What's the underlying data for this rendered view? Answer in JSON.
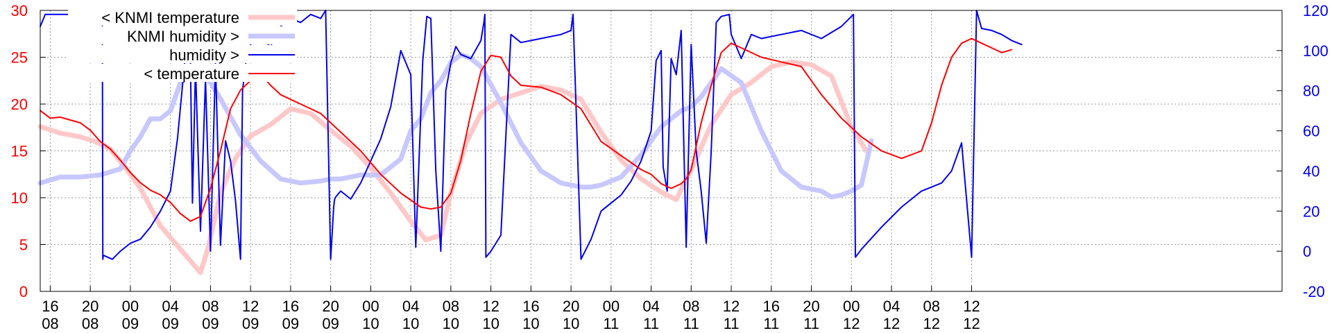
{
  "chart_data": {
    "type": "line",
    "title": "",
    "legend_position": "top-left",
    "grid": true,
    "colors": {
      "temperature": "#ff0000",
      "humidity": "#0000ee",
      "knmi_temperature": "#ffc8c8",
      "knmi_humidity": "#c8c8ff",
      "left_axis": "#ff0000",
      "right_axis": "#0000ee"
    },
    "y_left": {
      "ticks": [
        "0",
        "5",
        "10",
        "15",
        "20",
        "25",
        "30"
      ],
      "range": [
        0,
        30
      ]
    },
    "y_right": {
      "ticks": [
        "-20",
        "0",
        "20",
        "40",
        "60",
        "80",
        "100",
        "120"
      ],
      "range": [
        -20,
        120
      ]
    },
    "x_range_hours": [
      0,
      124
    ],
    "x_ticks": [
      {
        "h": 1,
        "top": "16",
        "bottom": "08"
      },
      {
        "h": 5,
        "top": "20",
        "bottom": "08"
      },
      {
        "h": 9,
        "top": "00",
        "bottom": "09"
      },
      {
        "h": 13,
        "top": "04",
        "bottom": "09"
      },
      {
        "h": 17,
        "top": "08",
        "bottom": "09"
      },
      {
        "h": 21,
        "top": "12",
        "bottom": "09"
      },
      {
        "h": 25,
        "top": "16",
        "bottom": "09"
      },
      {
        "h": 29,
        "top": "20",
        "bottom": "09"
      },
      {
        "h": 33,
        "top": "00",
        "bottom": "10"
      },
      {
        "h": 37,
        "top": "04",
        "bottom": "10"
      },
      {
        "h": 41,
        "top": "08",
        "bottom": "10"
      },
      {
        "h": 45,
        "top": "12",
        "bottom": "10"
      },
      {
        "h": 49,
        "top": "16",
        "bottom": "10"
      },
      {
        "h": 53,
        "top": "20",
        "bottom": "10"
      },
      {
        "h": 57,
        "top": "00",
        "bottom": "11"
      },
      {
        "h": 61,
        "top": "04",
        "bottom": "11"
      },
      {
        "h": 65,
        "top": "08",
        "bottom": "11"
      },
      {
        "h": 69,
        "top": "12",
        "bottom": "11"
      },
      {
        "h": 73,
        "top": "16",
        "bottom": "11"
      },
      {
        "h": 77,
        "top": "20",
        "bottom": "11"
      },
      {
        "h": 81,
        "top": "00",
        "bottom": "12"
      },
      {
        "h": 85,
        "top": "04",
        "bottom": "12"
      },
      {
        "h": 89,
        "top": "08",
        "bottom": "12"
      },
      {
        "h": 93,
        "top": "12",
        "bottom": "12"
      }
    ],
    "series": [
      {
        "name": "< KNMI temperature",
        "key": "knmi_temperature",
        "axis": "left",
        "width": 7,
        "x": [
          0,
          2,
          4,
          5.5,
          7,
          8.5,
          10,
          12,
          14,
          16,
          16.8,
          18,
          19.5,
          21,
          23,
          25,
          27,
          29,
          31,
          33,
          35,
          37,
          38.5,
          40,
          41,
          42.5,
          44,
          46,
          48,
          50,
          52,
          54,
          56,
          58,
          60,
          62,
          63.5,
          65,
          67,
          69,
          71,
          73,
          75,
          77,
          79,
          81,
          82.5
        ],
        "y": [
          17.6,
          16.9,
          16.5,
          16.0,
          15.2,
          13.2,
          11.0,
          7.0,
          4.5,
          2.0,
          4.8,
          10.5,
          14.2,
          16.6,
          17.8,
          19.5,
          19.0,
          17.2,
          15.5,
          13.2,
          10.5,
          7.5,
          5.5,
          6.0,
          10.5,
          15.8,
          19.0,
          20.5,
          21.2,
          21.9,
          21.5,
          20.5,
          17.0,
          14.0,
          12.0,
          10.6,
          9.8,
          13.0,
          17.8,
          21.0,
          22.3,
          24.0,
          24.5,
          24.2,
          23.0,
          17.5,
          15.0
        ]
      },
      {
        "name": "KNMI humidity >",
        "key": "knmi_humidity",
        "axis": "right",
        "width": 7,
        "x": [
          0,
          2,
          4,
          6,
          8,
          9,
          10,
          11,
          12,
          13,
          14,
          15,
          16,
          17,
          18,
          20,
          22,
          24,
          26,
          28,
          29,
          30,
          32,
          34,
          36,
          37,
          38,
          39,
          40,
          41,
          42,
          43,
          44,
          46,
          48,
          50,
          52,
          54,
          55,
          56,
          58,
          60,
          61,
          62,
          63,
          64,
          65,
          66,
          67,
          68,
          70,
          72,
          74,
          76,
          78,
          79,
          80,
          81,
          82,
          83
        ],
        "y": [
          34,
          37,
          37,
          38,
          41,
          50,
          57,
          66,
          66,
          70,
          84,
          88,
          90,
          84,
          76,
          58,
          45,
          36,
          34,
          35,
          36,
          36,
          38,
          38,
          46,
          60,
          66,
          79,
          85,
          94,
          98,
          96,
          92,
          74,
          54,
          40,
          34,
          32,
          32,
          33,
          37,
          48,
          55,
          62,
          66,
          70,
          72,
          77,
          84,
          91,
          84,
          60,
          40,
          32,
          30,
          27,
          28,
          30,
          33,
          55
        ]
      },
      {
        "name": "humidity >",
        "key": "humidity",
        "axis": "right",
        "width": 2,
        "x": [
          0,
          0.5,
          6.2,
          6.25,
          6.3,
          7.2,
          8,
          9,
          10,
          11,
          12,
          13,
          13.7,
          14.5,
          15.0,
          15.2,
          15.5,
          16.0,
          16.5,
          17,
          17.5,
          18,
          18.5,
          19,
          19.5,
          20,
          20.2,
          20.5,
          21,
          22,
          23,
          24,
          25,
          26,
          27,
          28,
          28.5,
          29,
          29.3,
          29.4,
          29.5,
          30,
          31,
          32,
          33,
          34,
          35,
          36,
          37,
          37.5,
          38.2,
          38.6,
          39,
          39.5,
          40,
          40.5,
          41,
          41.5,
          42,
          43,
          44,
          44.3,
          44.4,
          44.5,
          45,
          46,
          47,
          48,
          50,
          52,
          53,
          53.2,
          54,
          55,
          56,
          57,
          58,
          59,
          60,
          61,
          61.5,
          62,
          62.2,
          62.6,
          63,
          63.5,
          64,
          64.5,
          65,
          65.5,
          66,
          66.5,
          67,
          67.5,
          68,
          68.8,
          69,
          69.5,
          70,
          71,
          72,
          74,
          76,
          78,
          80,
          81.2,
          81.4,
          82,
          84,
          86,
          88,
          90,
          91,
          92,
          93,
          93.5,
          94,
          95,
          96,
          97,
          98
        ],
        "y": [
          112,
          118,
          118,
          -4,
          -2,
          -4,
          0,
          4,
          6,
          12,
          20,
          30,
          56,
          98,
          95,
          24,
          92,
          10,
          86,
          0,
          94,
          3,
          55,
          45,
          25,
          -4,
          80,
          93,
          103,
          106,
          102,
          112,
          116,
          114,
          118,
          116,
          120,
          -4,
          22,
          26,
          27,
          30,
          26,
          34,
          45,
          56,
          72,
          100,
          88,
          2,
          95,
          117,
          116,
          40,
          0,
          80,
          94,
          102,
          98,
          96,
          105,
          114,
          118,
          -3,
          0,
          8,
          108,
          104,
          106,
          108,
          110,
          118,
          -4,
          6,
          20,
          24,
          28,
          35,
          45,
          60,
          95,
          100,
          42,
          30,
          96,
          88,
          110,
          2,
          103,
          50,
          30,
          4,
          50,
          114,
          117,
          118,
          108,
          102,
          96,
          108,
          106,
          108,
          110,
          106,
          112,
          118,
          -3,
          1,
          12,
          22,
          30,
          34,
          40,
          54,
          -3,
          120,
          111,
          110,
          108,
          105,
          103
        ]
      },
      {
        "name": "< temperature",
        "key": "temperature",
        "axis": "left",
        "width": 2,
        "x": [
          0,
          1,
          2,
          3,
          4,
          5,
          6,
          7,
          8,
          9,
          10,
          11,
          12,
          13,
          14,
          15,
          16,
          17,
          18,
          19,
          20,
          21,
          22,
          23,
          24,
          25,
          26,
          28,
          30,
          32,
          34,
          36,
          38,
          39,
          40,
          41,
          42,
          43,
          44,
          45,
          46,
          47,
          48,
          50,
          52,
          54,
          56,
          58,
          60,
          61,
          62,
          63,
          64,
          64.5,
          65,
          66,
          67,
          68,
          69,
          70,
          72,
          74,
          76,
          78,
          80,
          82,
          84,
          86,
          88,
          89,
          90,
          91,
          92,
          93,
          94,
          95,
          96,
          97
        ],
        "y": [
          19.3,
          18.5,
          18.6,
          18.3,
          18.0,
          17.2,
          16.0,
          15.2,
          14.0,
          12.7,
          11.6,
          10.8,
          10.3,
          9.5,
          8.3,
          7.5,
          8.0,
          11.0,
          15.0,
          19.5,
          21.5,
          22.5,
          23.2,
          22.0,
          21.0,
          20.5,
          20.0,
          19.0,
          17.0,
          15.0,
          12.5,
          10.5,
          9.0,
          8.8,
          9.0,
          10.5,
          14.0,
          19.0,
          23.5,
          25.2,
          25.0,
          23.0,
          22.0,
          21.8,
          21.0,
          19.5,
          16.0,
          14.5,
          13.0,
          12.5,
          11.5,
          11.0,
          11.5,
          12.0,
          13.0,
          18.0,
          22.0,
          25.5,
          26.5,
          26.0,
          25.0,
          24.5,
          24.0,
          21.0,
          18.5,
          16.5,
          15.0,
          14.2,
          15.0,
          18.0,
          22.0,
          25.0,
          26.5,
          27.0,
          26.5,
          26.0,
          25.5,
          25.8
        ]
      }
    ]
  },
  "legend": [
    {
      "label": "< KNMI temperature",
      "key": "knmi_temperature",
      "width": 7
    },
    {
      "label": "KNMI humidity >",
      "key": "knmi_humidity",
      "width": 7
    },
    {
      "label": "humidity >",
      "key": "humidity",
      "width": 2
    },
    {
      "label": "< temperature",
      "key": "temperature",
      "width": 2
    }
  ]
}
